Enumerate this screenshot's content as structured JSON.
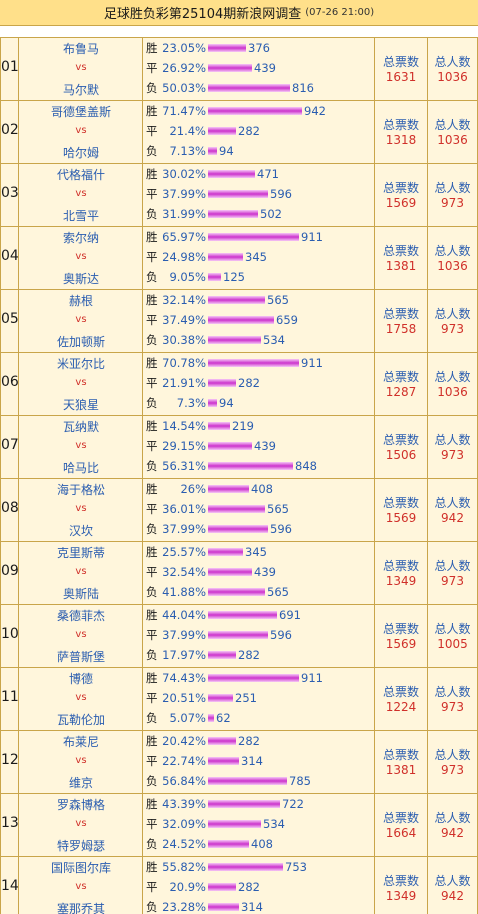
{
  "header": {
    "title": "足球胜负彩第25104期新浪网调查",
    "datetime": "(07-26 21:00)"
  },
  "labels": {
    "win": "胜",
    "draw": "平",
    "loss": "负",
    "vs": "vs",
    "total_votes": "总票数",
    "total_people": "总人数"
  },
  "colors": {
    "team": "#2a5db0",
    "vs": "#d0302a",
    "total_value": "#d0302a",
    "header_bg": "#ffe08a",
    "row_bg": "#fff6dc",
    "bar": "#cc33cc"
  },
  "matches": [
    {
      "num": "01",
      "home": "布鲁马",
      "away": "马尔默",
      "win_pct": "23.05%",
      "win": 376,
      "draw_pct": "26.92%",
      "draw": 439,
      "loss_pct": "50.03%",
      "loss": 816,
      "total_votes": 1631,
      "total_people": 1036
    },
    {
      "num": "02",
      "home": "哥德堡盖斯",
      "away": "哈尔姆",
      "win_pct": "71.47%",
      "win": 942,
      "draw_pct": "21.4%",
      "draw": 282,
      "loss_pct": "7.13%",
      "loss": 94,
      "total_votes": 1318,
      "total_people": 1036
    },
    {
      "num": "03",
      "home": "代格福什",
      "away": "北雪平",
      "win_pct": "30.02%",
      "win": 471,
      "draw_pct": "37.99%",
      "draw": 596,
      "loss_pct": "31.99%",
      "loss": 502,
      "total_votes": 1569,
      "total_people": 973
    },
    {
      "num": "04",
      "home": "索尔纳",
      "away": "奥斯达",
      "win_pct": "65.97%",
      "win": 911,
      "draw_pct": "24.98%",
      "draw": 345,
      "loss_pct": "9.05%",
      "loss": 125,
      "total_votes": 1381,
      "total_people": 1036
    },
    {
      "num": "05",
      "home": "赫根",
      "away": "佐加顿斯",
      "win_pct": "32.14%",
      "win": 565,
      "draw_pct": "37.49%",
      "draw": 659,
      "loss_pct": "30.38%",
      "loss": 534,
      "total_votes": 1758,
      "total_people": 973
    },
    {
      "num": "06",
      "home": "米亚尔比",
      "away": "天狼星",
      "win_pct": "70.78%",
      "win": 911,
      "draw_pct": "21.91%",
      "draw": 282,
      "loss_pct": "7.3%",
      "loss": 94,
      "total_votes": 1287,
      "total_people": 1036
    },
    {
      "num": "07",
      "home": "瓦纳默",
      "away": "哈马比",
      "win_pct": "14.54%",
      "win": 219,
      "draw_pct": "29.15%",
      "draw": 439,
      "loss_pct": "56.31%",
      "loss": 848,
      "total_votes": 1506,
      "total_people": 973
    },
    {
      "num": "08",
      "home": "海于格松",
      "away": "汉坎",
      "win_pct": "26%",
      "win": 408,
      "draw_pct": "36.01%",
      "draw": 565,
      "loss_pct": "37.99%",
      "loss": 596,
      "total_votes": 1569,
      "total_people": 942
    },
    {
      "num": "09",
      "home": "克里斯蒂",
      "away": "奥斯陆",
      "win_pct": "25.57%",
      "win": 345,
      "draw_pct": "32.54%",
      "draw": 439,
      "loss_pct": "41.88%",
      "loss": 565,
      "total_votes": 1349,
      "total_people": 973
    },
    {
      "num": "10",
      "home": "桑德菲杰",
      "away": "萨普斯堡",
      "win_pct": "44.04%",
      "win": 691,
      "draw_pct": "37.99%",
      "draw": 596,
      "loss_pct": "17.97%",
      "loss": 282,
      "total_votes": 1569,
      "total_people": 1005
    },
    {
      "num": "11",
      "home": "博德",
      "away": "瓦勒伦加",
      "win_pct": "74.43%",
      "win": 911,
      "draw_pct": "20.51%",
      "draw": 251,
      "loss_pct": "5.07%",
      "loss": 62,
      "total_votes": 1224,
      "total_people": 973
    },
    {
      "num": "12",
      "home": "布莱尼",
      "away": "维京",
      "win_pct": "20.42%",
      "win": 282,
      "draw_pct": "22.74%",
      "draw": 314,
      "loss_pct": "56.84%",
      "loss": 785,
      "total_votes": 1381,
      "total_people": 973
    },
    {
      "num": "13",
      "home": "罗森博格",
      "away": "特罗姆瑟",
      "win_pct": "43.39%",
      "win": 722,
      "draw_pct": "32.09%",
      "draw": 534,
      "loss_pct": "24.52%",
      "loss": 408,
      "total_votes": 1664,
      "total_people": 942
    },
    {
      "num": "14",
      "home": "国际图尔库",
      "away": "塞那乔其",
      "win_pct": "55.82%",
      "win": 753,
      "draw_pct": "20.9%",
      "draw": 282,
      "loss_pct": "23.28%",
      "loss": 314,
      "total_votes": 1349,
      "total_people": 942
    }
  ]
}
